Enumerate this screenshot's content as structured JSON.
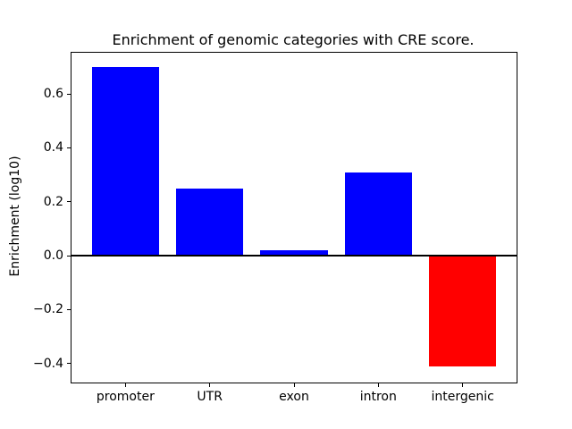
{
  "figure": {
    "title": "Enrichment of genomic categories with CRE score.",
    "ylabel": "Enrichment (log10)",
    "background_color": "#ffffff",
    "spine_color": "#000000"
  },
  "chart_data": {
    "type": "bar",
    "title": "Enrichment of genomic categories with CRE score.",
    "xlabel": "",
    "ylabel": "Enrichment (log10)",
    "categories": [
      "promoter",
      "UTR",
      "exon",
      "intron",
      "intergenic"
    ],
    "values": [
      0.7,
      0.25,
      0.02,
      0.31,
      -0.41
    ],
    "bar_colors": [
      "#0000ff",
      "#0000ff",
      "#0000ff",
      "#0000ff",
      "#ff0000"
    ],
    "positive_color": "#0000ff",
    "negative_color": "#ff0000",
    "bar_width": 0.8,
    "xlim": [
      -0.64,
      4.64
    ],
    "ylim": [
      -0.471,
      0.753
    ],
    "yticks": {
      "values": [
        0.6,
        0.4,
        0.2,
        0.0,
        -0.2,
        -0.4
      ],
      "labels": [
        "0.6",
        "0.4",
        "0.2",
        "0.0",
        "−0.2",
        "−0.4"
      ]
    },
    "zero_line": {
      "value": 0,
      "color": "#000000",
      "thickness_px": 2
    },
    "grid": false
  }
}
